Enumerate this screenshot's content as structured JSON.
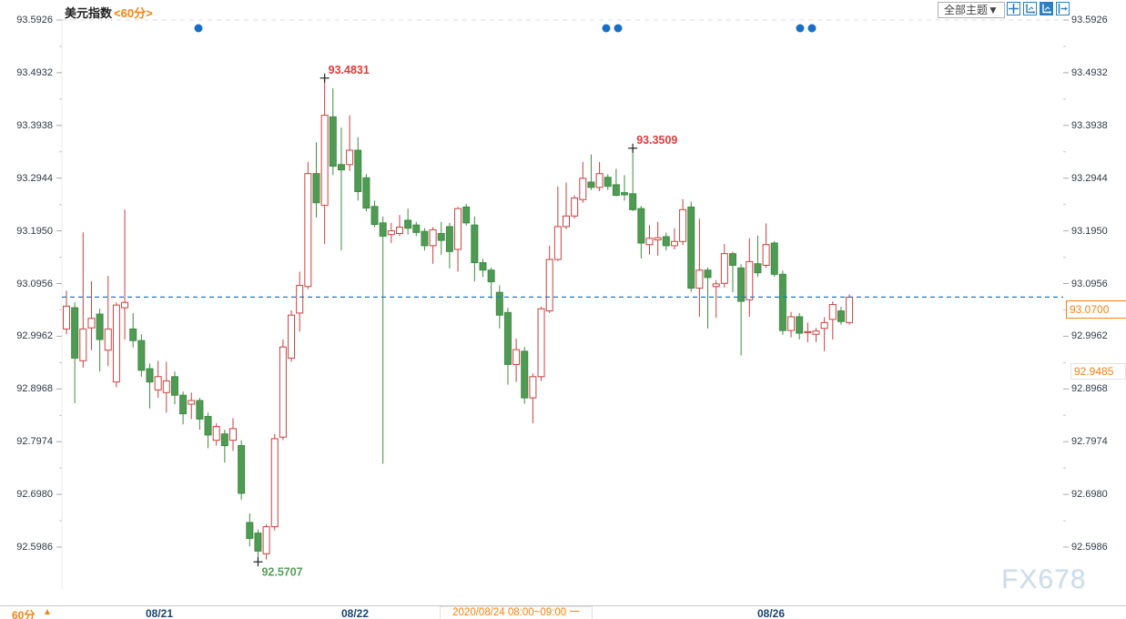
{
  "header": {
    "title": "美元指数",
    "timeframe": "<60分>",
    "themes_dropdown": "全部主题▼",
    "toolbar_icons": [
      "crosshair-icon",
      "fit-chart-icon",
      "scale-axis-icon",
      "pan-right-icon"
    ]
  },
  "footer": {
    "timeframe_label": "60分",
    "arrow": "▲",
    "hover_info": "2020/08/24 08:00~09:00 一"
  },
  "watermark": "FX678",
  "colors": {
    "accent_orange": "#f8820f",
    "up_stroke": "#c9413f",
    "down_fill": "#4f9b54",
    "down_stroke": "#3e8b43",
    "current_line": "#1e78d7",
    "event_dot": "#1a6fc4",
    "annotation_up": "#e13b3b",
    "annotation_down": "#55a058",
    "grid": "#dcdcdc",
    "tick": "#a9a9a9"
  },
  "chart_data": {
    "type": "candlestick",
    "title": "美元指数",
    "interval": "60分",
    "up_style": {
      "fill": "hollow",
      "stroke": "#c9413f"
    },
    "down_style": {
      "fill": "#4f9b54",
      "stroke": "#3e8b43"
    },
    "y_ticks": [
      "93.5926",
      "93.4932",
      "93.3938",
      "93.2944",
      "93.1950",
      "93.0956",
      "92.9962",
      "92.8968",
      "92.7974",
      "92.6980",
      "92.5986"
    ],
    "y_range": [
      92.5986,
      93.5926
    ],
    "x_axis_labels": [
      {
        "text": "08/21",
        "x": 175
      },
      {
        "text": "08/22",
        "x": 390
      },
      {
        "text": "08/26",
        "x": 847
      }
    ],
    "current_price": 93.07,
    "current_price_label": "93.0700",
    "secondary_price": 92.9485,
    "secondary_price_label": "92.9485",
    "annotations": [
      {
        "text": "93.4831",
        "price": 93.4831,
        "candle_index": 31,
        "placement": "above",
        "color": "#e13b3b"
      },
      {
        "text": "93.3509",
        "price": 93.3509,
        "candle_index": 68,
        "placement": "above",
        "color": "#e13b3b"
      },
      {
        "text": "92.5707",
        "price": 92.5707,
        "candle_index": 23,
        "placement": "below",
        "color": "#55a058"
      }
    ],
    "event_dots": {
      "y": 31,
      "x_positions": [
        218,
        666,
        679,
        879,
        892
      ],
      "color": "#1a6fc4"
    },
    "ohlc": [
      [
        93.01,
        93.082,
        93.0,
        93.053
      ],
      [
        93.05,
        93.06,
        92.87,
        92.955
      ],
      [
        92.95,
        93.192,
        92.937,
        93.01
      ],
      [
        93.012,
        93.1,
        92.97,
        93.03
      ],
      [
        93.038,
        93.048,
        92.93,
        92.99
      ],
      [
        92.97,
        93.11,
        92.94,
        93.01
      ],
      [
        92.91,
        93.06,
        92.9,
        93.055
      ],
      [
        93.05,
        93.235,
        92.99,
        93.06
      ],
      [
        93.01,
        93.04,
        92.975,
        92.988
      ],
      [
        92.988,
        93.0,
        92.92,
        92.932
      ],
      [
        92.935,
        92.945,
        92.86,
        92.91
      ],
      [
        92.895,
        92.95,
        92.88,
        92.92
      ],
      [
        92.89,
        92.948,
        92.852,
        92.912
      ],
      [
        92.92,
        92.93,
        92.868,
        92.885
      ],
      [
        92.885,
        92.892,
        92.83,
        92.85
      ],
      [
        92.868,
        92.89,
        92.84,
        92.875
      ],
      [
        92.875,
        92.88,
        92.82,
        92.84
      ],
      [
        92.845,
        92.852,
        92.785,
        92.81
      ],
      [
        92.8,
        92.832,
        92.79,
        92.826
      ],
      [
        92.812,
        92.82,
        92.758,
        92.79
      ],
      [
        92.8,
        92.842,
        92.78,
        92.822
      ],
      [
        92.79,
        92.8,
        92.688,
        92.7
      ],
      [
        92.645,
        92.662,
        92.6,
        92.615
      ],
      [
        92.625,
        92.632,
        92.5707,
        92.591
      ],
      [
        92.586,
        92.642,
        92.575,
        92.637
      ],
      [
        92.637,
        92.812,
        92.63,
        92.803
      ],
      [
        92.806,
        92.99,
        92.8,
        92.976
      ],
      [
        92.955,
        93.045,
        92.948,
        93.036
      ],
      [
        93.04,
        93.118,
        93.005,
        93.092
      ],
      [
        93.09,
        93.325,
        93.085,
        93.303
      ],
      [
        93.303,
        93.362,
        93.22,
        93.248
      ],
      [
        93.243,
        93.4831,
        93.17,
        93.413
      ],
      [
        93.41,
        93.464,
        93.3,
        93.317
      ],
      [
        93.32,
        93.39,
        93.158,
        93.31
      ],
      [
        93.32,
        93.413,
        93.308,
        93.347
      ],
      [
        93.347,
        93.372,
        93.252,
        93.269
      ],
      [
        93.295,
        93.302,
        93.232,
        93.238
      ],
      [
        93.241,
        93.252,
        93.202,
        93.207
      ],
      [
        93.21,
        93.222,
        92.756,
        93.185
      ],
      [
        93.188,
        93.21,
        93.172,
        93.195
      ],
      [
        93.19,
        93.225,
        93.185,
        93.202
      ],
      [
        93.215,
        93.237,
        93.188,
        93.2
      ],
      [
        93.206,
        93.212,
        93.185,
        93.192
      ],
      [
        93.194,
        93.2,
        93.158,
        93.167
      ],
      [
        93.167,
        93.202,
        93.133,
        93.197
      ],
      [
        93.19,
        93.212,
        93.15,
        93.177
      ],
      [
        93.203,
        93.21,
        93.124,
        93.156
      ],
      [
        93.16,
        93.24,
        93.118,
        93.237
      ],
      [
        93.24,
        93.246,
        93.205,
        93.21
      ],
      [
        93.206,
        93.222,
        93.1,
        93.135
      ],
      [
        93.135,
        93.142,
        93.108,
        93.121
      ],
      [
        93.121,
        93.126,
        93.067,
        93.099
      ],
      [
        93.079,
        93.092,
        93.011,
        93.036
      ],
      [
        93.041,
        93.05,
        92.905,
        92.943
      ],
      [
        92.943,
        92.992,
        92.91,
        92.971
      ],
      [
        92.968,
        92.976,
        92.869,
        92.88
      ],
      [
        92.88,
        92.926,
        92.832,
        92.92
      ],
      [
        92.92,
        93.052,
        92.912,
        93.048
      ],
      [
        93.044,
        93.167,
        93.04,
        93.141
      ],
      [
        93.141,
        93.279,
        93.138,
        93.203
      ],
      [
        93.203,
        93.286,
        93.198,
        93.223
      ],
      [
        93.223,
        93.262,
        93.218,
        93.257
      ],
      [
        93.254,
        93.325,
        93.248,
        93.294
      ],
      [
        93.287,
        93.339,
        93.272,
        93.277
      ],
      [
        93.277,
        93.325,
        93.27,
        93.303
      ],
      [
        93.296,
        93.302,
        93.272,
        93.279
      ],
      [
        93.282,
        93.312,
        93.26,
        93.262
      ],
      [
        93.267,
        93.3,
        93.252,
        93.263
      ],
      [
        93.265,
        93.3509,
        93.232,
        93.235
      ],
      [
        93.237,
        93.242,
        93.143,
        93.172
      ],
      [
        93.169,
        93.206,
        93.15,
        93.181
      ],
      [
        93.178,
        93.212,
        93.148,
        93.182
      ],
      [
        93.184,
        93.192,
        93.158,
        93.167
      ],
      [
        93.167,
        93.2,
        93.16,
        93.175
      ],
      [
        93.175,
        93.255,
        93.168,
        93.235
      ],
      [
        93.24,
        93.25,
        93.08,
        93.087
      ],
      [
        93.087,
        93.218,
        93.033,
        93.121
      ],
      [
        93.121,
        93.126,
        93.011,
        93.107
      ],
      [
        93.09,
        93.102,
        93.031,
        93.095
      ],
      [
        93.096,
        93.17,
        93.088,
        93.152
      ],
      [
        93.152,
        93.156,
        93.079,
        93.13
      ],
      [
        93.125,
        93.132,
        92.96,
        93.062
      ],
      [
        93.065,
        93.181,
        93.033,
        93.137
      ],
      [
        93.133,
        93.186,
        93.108,
        93.116
      ],
      [
        93.13,
        93.209,
        93.125,
        93.169
      ],
      [
        93.172,
        93.176,
        93.108,
        93.113
      ],
      [
        93.113,
        93.12,
        92.999,
        93.007
      ],
      [
        93.007,
        93.042,
        92.994,
        93.033
      ],
      [
        93.033,
        93.04,
        92.99,
        93.002
      ],
      [
        93.005,
        93.022,
        92.985,
        93.005
      ],
      [
        93.0,
        93.012,
        92.985,
        93.006
      ],
      [
        93.011,
        93.032,
        92.968,
        93.022
      ],
      [
        93.028,
        93.062,
        92.99,
        93.056
      ],
      [
        93.044,
        93.052,
        93.018,
        93.024
      ],
      [
        93.022,
        93.075,
        93.018,
        93.07
      ]
    ]
  }
}
